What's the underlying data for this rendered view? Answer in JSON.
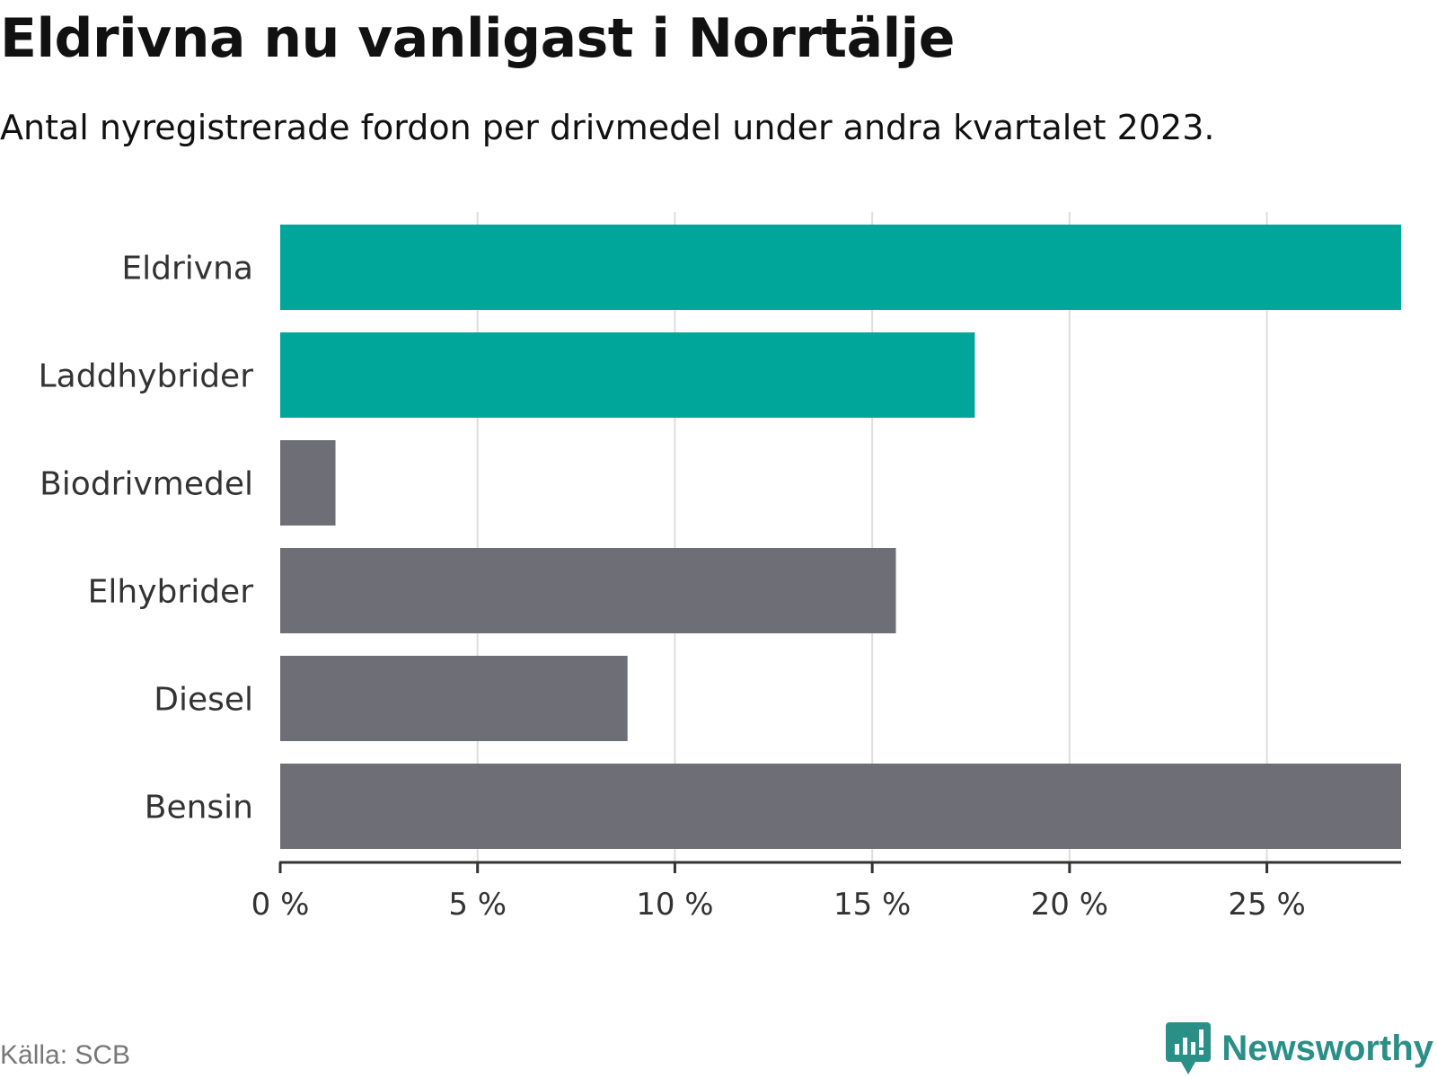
{
  "title": "Eldrivna nu vanligast i Norrtälje",
  "subtitle": "Antal nyregistrerade fordon per drivmedel under andra kvartalet 2023.",
  "source": "Källa: SCB",
  "brand": {
    "name": "Newsworthy",
    "icon": "newsworthy-logo-icon",
    "color": "#2a8f87"
  },
  "colors": {
    "highlight": "#00a69a",
    "default": "#6e6e77",
    "grid": "#dddddd",
    "axis": "#333333"
  },
  "chart_data": {
    "type": "bar",
    "orientation": "horizontal",
    "categories": [
      "Eldrivna",
      "Laddhybrider",
      "Biodrivmedel",
      "Elhybrider",
      "Diesel",
      "Bensin"
    ],
    "values": [
      28.4,
      17.6,
      1.4,
      15.6,
      8.8,
      28.4
    ],
    "highlighted": [
      true,
      true,
      false,
      false,
      false,
      false
    ],
    "xlim": [
      0,
      28.4
    ],
    "xticks": [
      0,
      5,
      10,
      15,
      20,
      25
    ],
    "tick_labels": [
      "0 %",
      "5 %",
      "10 %",
      "15 %",
      "20 %",
      "25 %"
    ],
    "xlabel": "",
    "ylabel": "",
    "grid": true
  }
}
